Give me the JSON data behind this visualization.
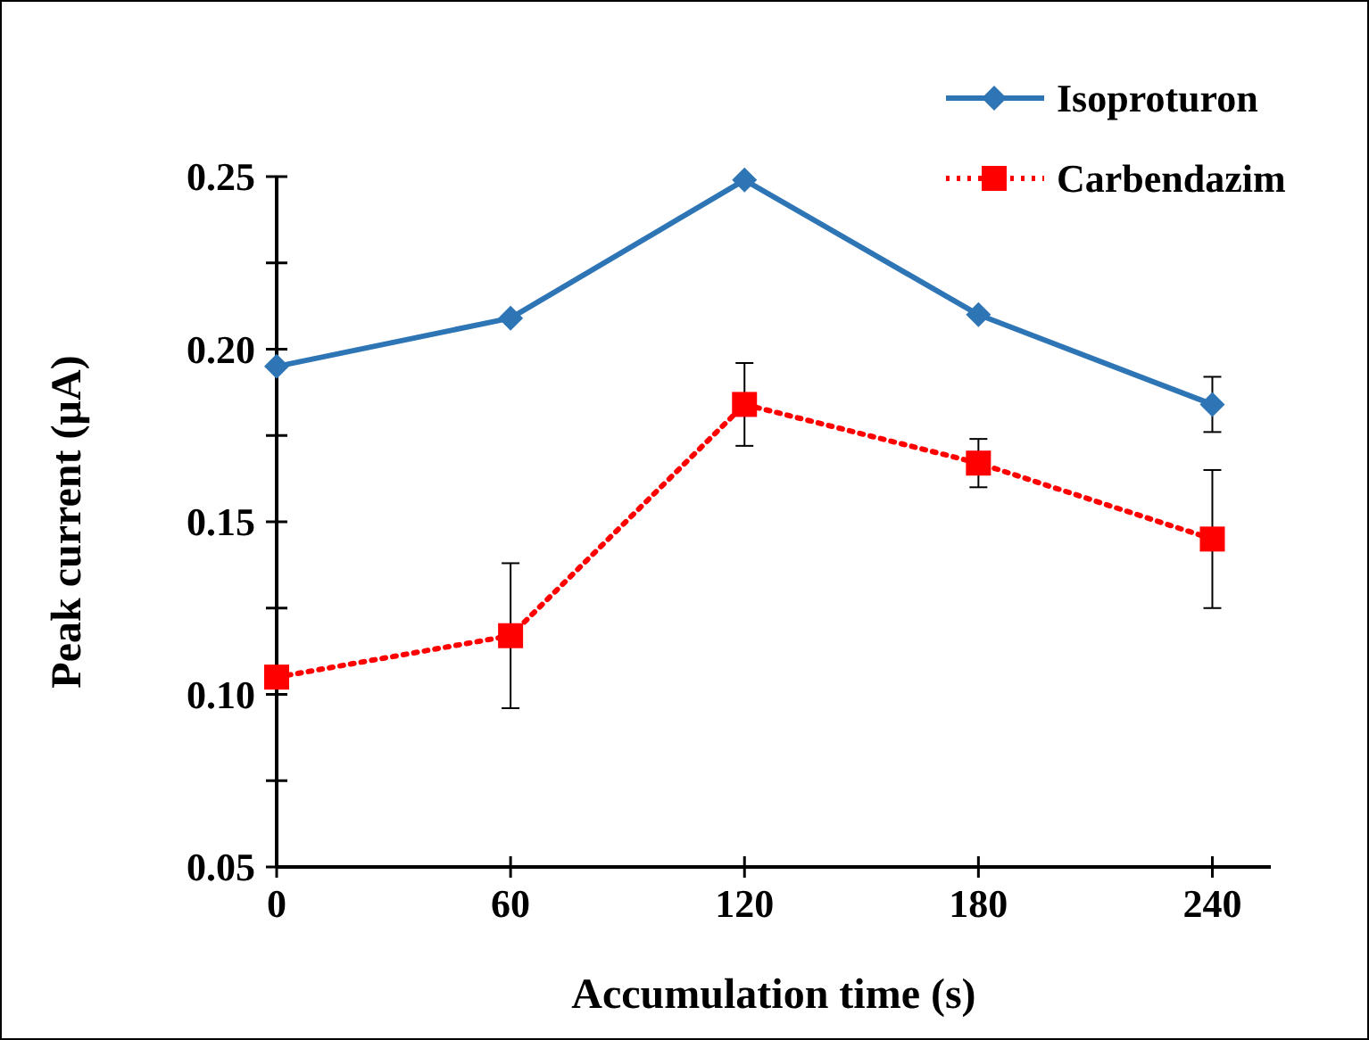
{
  "chart_data": {
    "type": "line",
    "xlabel": "Accumulation time (s)",
    "ylabel": "Peak current (µA)",
    "x": [
      0,
      60,
      120,
      180,
      240
    ],
    "xlim": [
      0,
      255
    ],
    "xticks": [
      0,
      60,
      120,
      180,
      240
    ],
    "ylim": [
      0.05,
      0.25
    ],
    "yticks": [
      0.05,
      {
        "value": 0.075,
        "label": null
      },
      "0.10",
      {
        "value": 0.125,
        "label": null
      },
      0.15,
      {
        "value": 0.175,
        "label": null
      },
      "0.20",
      {
        "value": 0.225,
        "label": null
      },
      0.25
    ],
    "grid": false,
    "legend": "top right",
    "series": [
      {
        "name": "Isoproturon",
        "color": "#2e75b6",
        "values": [
          0.195,
          0.209,
          0.249,
          0.21,
          0.184
        ],
        "errors": [
          null,
          null,
          null,
          null,
          0.008
        ],
        "marker": "diamond",
        "line_style": "solid"
      },
      {
        "name": "Carbendazim",
        "color": "#ff0000",
        "values": [
          0.105,
          0.117,
          0.184,
          0.167,
          0.145
        ],
        "errors": [
          null,
          0.021,
          0.012,
          0.007,
          0.02
        ],
        "marker": "square",
        "line_style": "dotted"
      }
    ]
  }
}
